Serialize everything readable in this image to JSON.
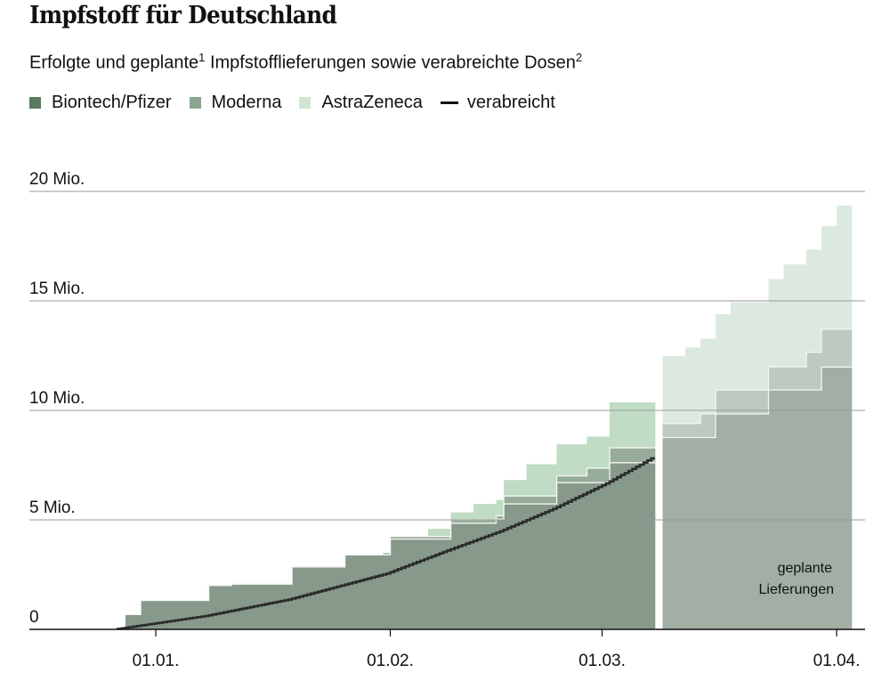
{
  "header": {
    "title": "Impfstoff für Deutschland",
    "subtitle_a": "Erfolgte und geplante",
    "subtitle_sup1": "1",
    "subtitle_b": " Impfstofflieferungen sowie verabreichte Dosen",
    "subtitle_sup2": "2"
  },
  "legend": [
    {
      "label": "Biontech/Pfizer",
      "color": "#587a5f"
    },
    {
      "label": "Moderna",
      "color": "#8aa68f"
    },
    {
      "label": "AstraZeneca",
      "color": "#cfe6d2"
    },
    {
      "label": "verabreicht",
      "color": "#111111"
    }
  ],
  "chart_data": {
    "type": "area",
    "stacked": true,
    "step": true,
    "unit": "Mio.",
    "ylim": [
      0,
      20
    ],
    "yticks": [
      {
        "value": 0,
        "label": "0"
      },
      {
        "value": 5,
        "label": "5 Mio."
      },
      {
        "value": 10,
        "label": "10 Mio."
      },
      {
        "value": 15,
        "label": "15 Mio."
      },
      {
        "value": 20,
        "label": "20 Mio."
      }
    ],
    "xticks": [
      "01.01.",
      "01.02.",
      "01.03.",
      "01.04."
    ],
    "grid": true,
    "colors": {
      "delivered": {
        "biontech": "#87998a",
        "moderna": "#96ab99",
        "astrazeneca": "#c0dcc4"
      },
      "planned": {
        "biontech": "#a1afa4",
        "moderna": "#bccabf",
        "astrazeneca": "#dce9de"
      },
      "administered": "#2a2a2a"
    },
    "delivered": {
      "end": "08.03.",
      "steps": [
        {
          "from": "28.12.",
          "biontech": 0.68,
          "moderna": 0,
          "astrazeneca": 0
        },
        {
          "from": "30.12.",
          "biontech": 1.32,
          "moderna": 0,
          "astrazeneca": 0
        },
        {
          "from": "08.01.",
          "biontech": 2.01,
          "moderna": 0,
          "astrazeneca": 0
        },
        {
          "from": "11.01.",
          "biontech": 2.07,
          "moderna": 0,
          "astrazeneca": 0
        },
        {
          "from": "19.01.",
          "biontech": 2.85,
          "moderna": 0,
          "astrazeneca": 0
        },
        {
          "from": "26.01.",
          "biontech": 3.4,
          "moderna": 0,
          "astrazeneca": 0
        },
        {
          "from": "31.01.",
          "biontech": 3.4,
          "moderna": 0.1,
          "astrazeneca": 0
        },
        {
          "from": "01.02.",
          "biontech": 4.12,
          "moderna": 0.12,
          "astrazeneca": 0
        },
        {
          "from": "06.02.",
          "biontech": 4.12,
          "moderna": 0.12,
          "astrazeneca": 0.35
        },
        {
          "from": "09.02.",
          "biontech": 4.85,
          "moderna": 0.15,
          "astrazeneca": 0.34
        },
        {
          "from": "12.02.",
          "biontech": 4.85,
          "moderna": 0.15,
          "astrazeneca": 0.73
        },
        {
          "from": "15.02.",
          "biontech": 5.03,
          "moderna": 0.16,
          "astrazeneca": 0.72
        },
        {
          "from": "16.02.",
          "biontech": 5.73,
          "moderna": 0.36,
          "astrazeneca": 0.73
        },
        {
          "from": "19.02.",
          "biontech": 5.73,
          "moderna": 0.36,
          "astrazeneca": 1.45
        },
        {
          "from": "23.02.",
          "biontech": 6.7,
          "moderna": 0.31,
          "astrazeneca": 1.44
        },
        {
          "from": "27.02.",
          "biontech": 6.7,
          "moderna": 0.66,
          "astrazeneca": 1.44
        },
        {
          "from": "02.03.",
          "biontech": 7.61,
          "moderna": 0.68,
          "astrazeneca": 2.08
        }
      ]
    },
    "planned": {
      "label_line1": "geplante",
      "label_line2": "Lieferungen",
      "end": "03.04.",
      "steps": [
        {
          "from": "09.03.",
          "biontech": 8.76,
          "moderna": 0.64,
          "astrazeneca": 3.09
        },
        {
          "from": "12.03.",
          "biontech": 8.76,
          "moderna": 0.64,
          "astrazeneca": 3.47
        },
        {
          "from": "14.03.",
          "biontech": 8.76,
          "moderna": 1.08,
          "astrazeneca": 3.44
        },
        {
          "from": "16.03.",
          "biontech": 9.84,
          "moderna": 1.09,
          "astrazeneca": 3.46
        },
        {
          "from": "18.03.",
          "biontech": 9.84,
          "moderna": 1.09,
          "astrazeneca": 4.0
        },
        {
          "from": "23.03.",
          "biontech": 10.93,
          "moderna": 1.06,
          "astrazeneca": 4.01
        },
        {
          "from": "25.03.",
          "biontech": 10.93,
          "moderna": 1.06,
          "astrazeneca": 4.68
        },
        {
          "from": "28.03.",
          "biontech": 10.93,
          "moderna": 1.72,
          "astrazeneca": 4.69
        },
        {
          "from": "30.03.",
          "biontech": 11.98,
          "moderna": 1.73,
          "astrazeneca": 4.71
        },
        {
          "from": "01.04.",
          "biontech": 11.98,
          "moderna": 1.73,
          "astrazeneca": 5.64
        }
      ]
    },
    "administered": [
      {
        "x": "27.12.",
        "y": 0.0
      },
      {
        "x": "08.01.",
        "y": 0.61
      },
      {
        "x": "19.01.",
        "y": 1.36
      },
      {
        "x": "01.02.",
        "y": 2.55
      },
      {
        "x": "09.02.",
        "y": 3.6
      },
      {
        "x": "16.02.",
        "y": 4.48
      },
      {
        "x": "23.02.",
        "y": 5.5
      },
      {
        "x": "02.03.",
        "y": 6.66
      },
      {
        "x": "08.03.",
        "y": 7.81
      }
    ]
  }
}
